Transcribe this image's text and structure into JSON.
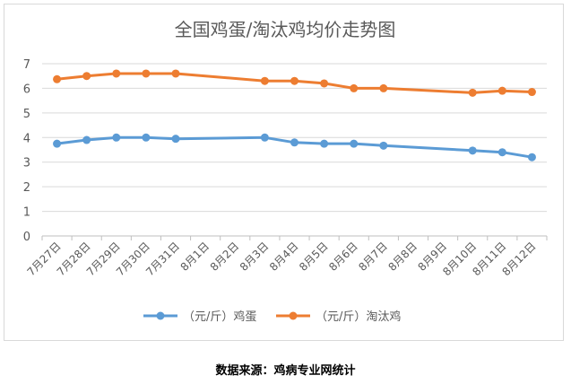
{
  "chart_data": {
    "type": "line",
    "title": "全国鸡蛋/淘汰鸡均价走势图",
    "categories": [
      "7月27日",
      "7月28日",
      "7月29日",
      "7月30日",
      "7月31日",
      "8月1日",
      "8月2日",
      "8月3日",
      "8月4日",
      "8月5日",
      "8月6日",
      "8月7日",
      "8月8日",
      "8月9日",
      "8月10日",
      "8月11日",
      "8月12日"
    ],
    "ylim": [
      0,
      7
    ],
    "yticks": [
      "0",
      "1",
      "2",
      "3",
      "4",
      "5",
      "6",
      "7"
    ],
    "grid": true,
    "legend_position": "bottom",
    "series": [
      {
        "name": "（元/斤）鸡蛋",
        "color": "#5b9bd5",
        "values": [
          3.75,
          3.9,
          4.0,
          4.0,
          3.95,
          null,
          null,
          4.0,
          3.8,
          3.75,
          3.75,
          3.67,
          null,
          null,
          3.47,
          3.4,
          3.2
        ]
      },
      {
        "name": "（元/斤）淘汰鸡",
        "color": "#ed7d31",
        "values": [
          6.37,
          6.5,
          6.6,
          6.6,
          6.6,
          null,
          null,
          6.3,
          6.3,
          6.2,
          6.0,
          6.0,
          null,
          null,
          5.82,
          5.9,
          5.85
        ]
      }
    ]
  },
  "source_note": "数据来源：鸡病专业网统计"
}
